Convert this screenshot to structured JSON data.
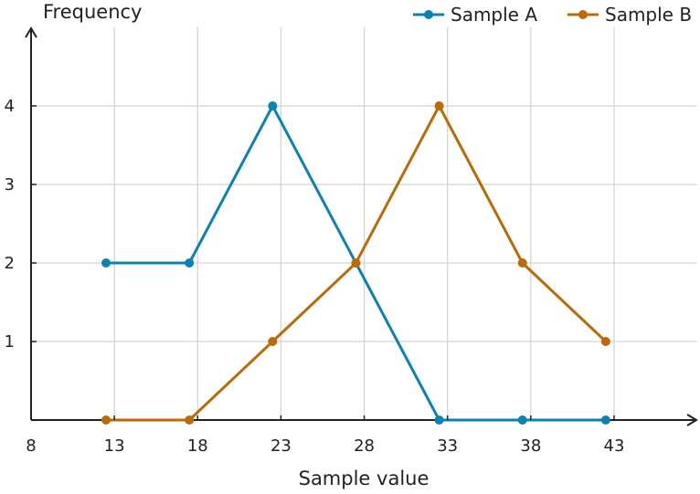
{
  "chart_data": {
    "type": "line",
    "title": "",
    "xlabel": "Sample value",
    "ylabel": "Frequency",
    "x": [
      12.5,
      17.5,
      22.5,
      27.5,
      32.5,
      37.5,
      42.5
    ],
    "x_ticks": [
      8,
      13,
      18,
      23,
      28,
      33,
      38,
      43
    ],
    "y_ticks": [
      1,
      2,
      3,
      4
    ],
    "xlim": [
      8,
      47.5
    ],
    "ylim": [
      0,
      5
    ],
    "grid": true,
    "legend": "top-right",
    "series": [
      {
        "name": "Sample A",
        "color": "#0a82b6",
        "values": [
          2,
          2,
          4,
          2,
          0,
          0,
          0
        ]
      },
      {
        "name": "Sample B",
        "color": "#bd6a06",
        "values": [
          0,
          0,
          1,
          2,
          4,
          2,
          1
        ]
      }
    ]
  }
}
